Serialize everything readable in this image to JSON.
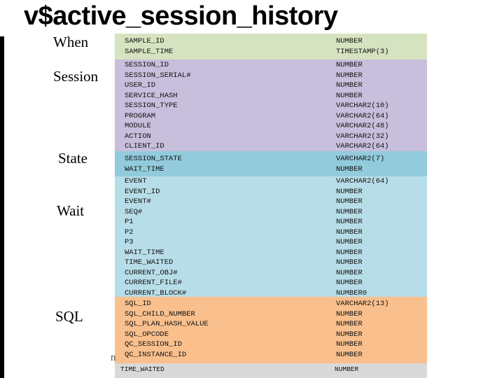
{
  "title": "v$active_session_history",
  "categories": {
    "when": "When",
    "session": "Session",
    "state": "State",
    "wait": "Wait",
    "sql": "SQL"
  },
  "colors": {
    "when": "#d6e3c0",
    "session": "#c7bfdc",
    "state": "#92cbdc",
    "wait": "#b7dde8",
    "sql": "#f9c08e",
    "bottom": "#d9d9d9"
  },
  "when_rows": [
    {
      "name": "SAMPLE_ID",
      "type": "NUMBER"
    },
    {
      "name": "SAMPLE_TIME",
      "type": "TIMESTAMP(3)"
    }
  ],
  "session_rows": [
    {
      "name": "SESSION_ID",
      "type": "NUMBER"
    },
    {
      "name": "SESSION_SERIAL#",
      "type": "NUMBER"
    },
    {
      "name": "USER_ID",
      "type": "NUMBER"
    },
    {
      "name": "SERVICE_HASH",
      "type": "NUMBER"
    },
    {
      "name": "SESSION_TYPE",
      "type": "VARCHAR2(10)"
    },
    {
      "name": "PROGRAM",
      "type": "VARCHAR2(64)"
    },
    {
      "name": "MODULE",
      "type": "VARCHAR2(48)"
    },
    {
      "name": "ACTION",
      "type": "VARCHAR2(32)"
    },
    {
      "name": "CLIENT_ID",
      "type": "VARCHAR2(64)"
    }
  ],
  "state_rows": [
    {
      "name": "SESSION_STATE",
      "type": "VARCHAR2(7)"
    },
    {
      "name": "WAIT_TIME",
      "type": "NUMBER"
    }
  ],
  "wait_rows": [
    {
      "name": "EVENT",
      "type": "VARCHAR2(64)"
    },
    {
      "name": "EVENT_ID",
      "type": "NUMBER"
    },
    {
      "name": "EVENT#",
      "type": "NUMBER"
    },
    {
      "name": "SEQ#",
      "type": "NUMBER"
    },
    {
      "name": "P1",
      "type": "NUMBER"
    },
    {
      "name": "P2",
      "type": "NUMBER"
    },
    {
      "name": "P3",
      "type": "NUMBER"
    },
    {
      "name": "WAIT_TIME",
      "type": "NUMBER"
    },
    {
      "name": "TIME_WAITED",
      "type": "NUMBER"
    },
    {
      "name": "CURRENT_OBJ#",
      "type": "NUMBER"
    },
    {
      "name": "CURRENT_FILE#",
      "type": "NUMBER"
    },
    {
      "name": "CURRENT_BLOCK#",
      "type": "NUMBER0"
    }
  ],
  "sql_rows": [
    {
      "name": "SQL_ID",
      "type": "VARCHAR2(13)"
    },
    {
      "name": "SQL_CHILD_NUMBER",
      "type": "NUMBER"
    },
    {
      "name": "SQL_PLAN_HASH_VALUE",
      "type": "NUMBER"
    },
    {
      "name": "SQL_OPCODE",
      "type": "NUMBER"
    },
    {
      "name": "QC_SESSION_ID",
      "type": "NUMBER"
    },
    {
      "name": "QC_INSTANCE_ID",
      "type": "NUMBER"
    }
  ],
  "bottom_row": {
    "name": "TIME_WAITED",
    "type": "NUMBER"
  },
  "stray_glyph": "n"
}
